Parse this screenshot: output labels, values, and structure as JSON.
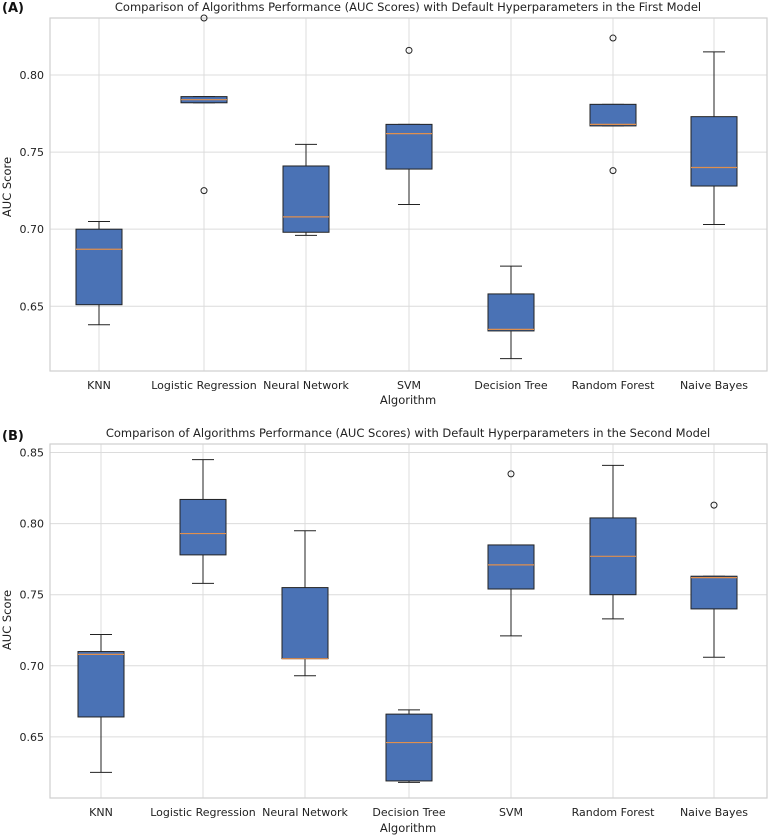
{
  "chart_data": [
    {
      "type": "box",
      "panel_label": "(A)",
      "title": "Comparison of Algorithms Performance (AUC Scores) with Default Hyperparameters in the First Model",
      "xlabel": "Algorithm",
      "ylabel": "AUC Score",
      "ylim": [
        0.608,
        0.837
      ],
      "yticks": [
        0.65,
        0.7,
        0.75,
        0.8
      ],
      "ytick_labels": [
        "0.65",
        "0.70",
        "0.75",
        "0.80"
      ],
      "categories": [
        "KNN",
        "Logistic Regression",
        "Neural Network",
        "SVM",
        "Decision Tree",
        "Random Forest",
        "Naive Bayes"
      ],
      "boxes": [
        {
          "whisker_low": 0.638,
          "q1": 0.651,
          "median": 0.687,
          "q3": 0.7,
          "whisker_high": 0.705,
          "outliers": []
        },
        {
          "whisker_low": 0.782,
          "q1": 0.782,
          "median": 0.784,
          "q3": 0.786,
          "whisker_high": 0.786,
          "outliers": [
            0.837,
            0.725
          ]
        },
        {
          "whisker_low": 0.696,
          "q1": 0.698,
          "median": 0.708,
          "q3": 0.741,
          "whisker_high": 0.755,
          "outliers": []
        },
        {
          "whisker_low": 0.716,
          "q1": 0.739,
          "median": 0.762,
          "q3": 0.768,
          "whisker_high": 0.768,
          "outliers": [
            0.816
          ]
        },
        {
          "whisker_low": 0.616,
          "q1": 0.634,
          "median": 0.635,
          "q3": 0.658,
          "whisker_high": 0.676,
          "outliers": []
        },
        {
          "whisker_low": 0.767,
          "q1": 0.767,
          "median": 0.768,
          "q3": 0.781,
          "whisker_high": 0.781,
          "outliers": [
            0.824,
            0.738
          ]
        },
        {
          "whisker_low": 0.703,
          "q1": 0.728,
          "median": 0.74,
          "q3": 0.773,
          "whisker_high": 0.815,
          "outliers": []
        }
      ]
    },
    {
      "type": "box",
      "panel_label": "(B)",
      "title": "Comparison of Algorithms Performance (AUC Scores) with Default Hyperparameters in the Second Model",
      "xlabel": "Algorithm",
      "ylabel": "AUC Score",
      "ylim": [
        0.607,
        0.856
      ],
      "yticks": [
        0.65,
        0.7,
        0.75,
        0.8,
        0.85
      ],
      "ytick_labels": [
        "0.65",
        "0.70",
        "0.75",
        "0.80",
        "0.85"
      ],
      "categories": [
        "KNN",
        "Logistic Regression",
        "Neural Network",
        "Decision Tree",
        "SVM",
        "Random Forest",
        "Naive Bayes"
      ],
      "boxes": [
        {
          "whisker_low": 0.625,
          "q1": 0.664,
          "median": 0.708,
          "q3": 0.71,
          "whisker_high": 0.722,
          "outliers": []
        },
        {
          "whisker_low": 0.758,
          "q1": 0.778,
          "median": 0.793,
          "q3": 0.817,
          "whisker_high": 0.845,
          "outliers": []
        },
        {
          "whisker_low": 0.693,
          "q1": 0.705,
          "median": 0.705,
          "q3": 0.755,
          "whisker_high": 0.795,
          "outliers": []
        },
        {
          "whisker_low": 0.618,
          "q1": 0.619,
          "median": 0.646,
          "q3": 0.666,
          "whisker_high": 0.669,
          "outliers": []
        },
        {
          "whisker_low": 0.721,
          "q1": 0.754,
          "median": 0.771,
          "q3": 0.785,
          "whisker_high": 0.785,
          "outliers": [
            0.835
          ]
        },
        {
          "whisker_low": 0.733,
          "q1": 0.75,
          "median": 0.777,
          "q3": 0.804,
          "whisker_high": 0.841,
          "outliers": []
        },
        {
          "whisker_low": 0.706,
          "q1": 0.74,
          "median": 0.762,
          "q3": 0.763,
          "whisker_high": 0.763,
          "outliers": [
            0.813
          ]
        }
      ]
    }
  ]
}
